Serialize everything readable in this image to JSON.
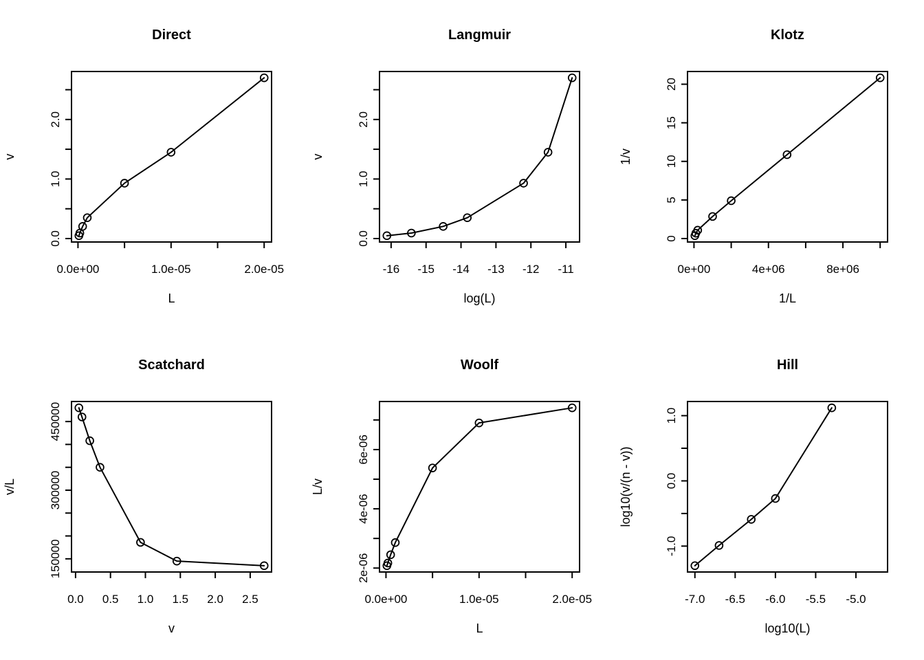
{
  "figure": {
    "background": "#ffffff",
    "foreground": "#000000",
    "rows": 2,
    "cols": 3,
    "marker": "open-circle",
    "description_titles": [
      "Direct",
      "Langmuir",
      "Klotz",
      "Scatchard",
      "Woolf",
      "Hill"
    ]
  },
  "chart_data": [
    {
      "id": "direct",
      "type": "line",
      "title": "Direct",
      "xlabel": "L",
      "ylabel": "v",
      "x": [
        1e-07,
        2e-07,
        5e-07,
        1e-06,
        5e-06,
        1e-05,
        2e-05
      ],
      "y": [
        0.048,
        0.092,
        0.204,
        0.35,
        0.93,
        1.45,
        2.7
      ],
      "xlim": [
        -6.96e-07,
        2.0796e-05
      ],
      "ylim": [
        -0.058,
        2.806
      ],
      "xticks": {
        "values": [
          0,
          5e-06,
          1e-05,
          1.5e-05,
          2e-05
        ],
        "labels": [
          "0.0e+00",
          null,
          "1.0e-05",
          null,
          "2.0e-05"
        ]
      },
      "yticks": {
        "values": [
          0,
          0.5,
          1,
          1.5,
          2,
          2.5
        ],
        "labels": [
          "0.0",
          null,
          "1.0",
          null,
          "2.0",
          null
        ]
      },
      "grid": false,
      "color": "#000000"
    },
    {
      "id": "langmuir",
      "type": "line",
      "title": "Langmuir",
      "xlabel": "log(L)",
      "ylabel": "v",
      "x": [
        -16.12,
        -15.42,
        -14.51,
        -13.82,
        -12.21,
        -11.51,
        -10.82
      ],
      "y": [
        0.048,
        0.092,
        0.204,
        0.35,
        0.93,
        1.45,
        2.7
      ],
      "xlim": [
        -16.332,
        -10.608
      ],
      "ylim": [
        -0.058,
        2.806
      ],
      "xticks": {
        "values": [
          -16,
          -15,
          -14,
          -13,
          -12,
          -11
        ],
        "labels": [
          "-16",
          "-15",
          "-14",
          "-13",
          "-12",
          "-11"
        ]
      },
      "yticks": {
        "values": [
          0,
          0.5,
          1,
          1.5,
          2,
          2.5
        ],
        "labels": [
          "0.0",
          null,
          "1.0",
          null,
          "2.0",
          null
        ]
      },
      "grid": false,
      "color": "#000000"
    },
    {
      "id": "klotz",
      "type": "line",
      "title": "Klotz",
      "xlabel": "1/L",
      "ylabel": "1/v",
      "x": [
        10000000,
        5000000,
        2000000,
        1000000,
        200000,
        100000,
        50000
      ],
      "y": [
        20.83,
        10.87,
        4.9,
        2.86,
        1.08,
        0.69,
        0.37
      ],
      "xlim": [
        -348000,
        10398000
      ],
      "ylim": [
        -0.448,
        21.648
      ],
      "xticks": {
        "values": [
          0,
          2000000,
          4000000,
          6000000,
          8000000,
          10000000
        ],
        "labels": [
          "0e+00",
          null,
          "4e+06",
          null,
          "8e+06",
          null
        ]
      },
      "yticks": {
        "values": [
          0,
          5,
          10,
          15,
          20
        ],
        "labels": [
          "0",
          "5",
          "10",
          "15",
          "20"
        ]
      },
      "grid": false,
      "color": "#000000"
    },
    {
      "id": "scatchard",
      "type": "line",
      "title": "Scatchard",
      "xlabel": "v",
      "ylabel": "v/L",
      "x": [
        0.048,
        0.092,
        0.204,
        0.35,
        0.93,
        1.45,
        2.7
      ],
      "y": [
        480000,
        460000,
        408000,
        350000,
        186000,
        145000,
        135000
      ],
      "xlim": [
        -0.058,
        2.806
      ],
      "ylim": [
        121200,
        493800
      ],
      "xticks": {
        "values": [
          0,
          0.5,
          1,
          1.5,
          2,
          2.5
        ],
        "labels": [
          "0.0",
          "0.5",
          "1.0",
          "1.5",
          "2.0",
          "2.5"
        ]
      },
      "yticks": {
        "values": [
          150000,
          200000,
          250000,
          300000,
          350000,
          400000,
          450000
        ],
        "labels": [
          "150000",
          null,
          null,
          "300000",
          null,
          null,
          "450000"
        ]
      },
      "grid": false,
      "color": "#000000"
    },
    {
      "id": "woolf",
      "type": "line",
      "title": "Woolf",
      "xlabel": "L",
      "ylabel": "L/v",
      "x": [
        1e-07,
        2e-07,
        5e-07,
        1e-06,
        5e-06,
        1e-05,
        2e-05
      ],
      "y": [
        2.08e-06,
        2.17e-06,
        2.45e-06,
        2.86e-06,
        5.38e-06,
        6.9e-06,
        7.41e-06
      ],
      "xlim": [
        -6.96e-07,
        2.0796e-05
      ],
      "ylim": [
        1.867e-06,
        7.623e-06
      ],
      "xticks": {
        "values": [
          0,
          5e-06,
          1e-05,
          1.5e-05,
          2e-05
        ],
        "labels": [
          "0.0e+00",
          null,
          "1.0e-05",
          null,
          "2.0e-05"
        ]
      },
      "yticks": {
        "values": [
          2e-06,
          3e-06,
          4e-06,
          5e-06,
          6e-06,
          7e-06
        ],
        "labels": [
          "2e-06",
          null,
          "4e-06",
          null,
          "6e-06",
          null
        ]
      },
      "grid": false,
      "color": "#000000"
    },
    {
      "id": "hill",
      "type": "line",
      "title": "Hill",
      "xlabel": "log10(L)",
      "ylabel": "log10(v/(n - v))",
      "x": [
        -7,
        -6.7,
        -6.3,
        -6,
        -5.3
      ],
      "y": [
        -1.3,
        -0.99,
        -0.59,
        -0.27,
        1.12
      ],
      "xlim": [
        -7.092,
        -4.607
      ],
      "ylim": [
        -1.397,
        1.217
      ],
      "xticks": {
        "values": [
          -7,
          -6.5,
          -6,
          -5.5,
          -5
        ],
        "labels": [
          "-7.0",
          "-6.5",
          "-6.0",
          "-5.5",
          "-5.0"
        ]
      },
      "yticks": {
        "values": [
          -1,
          -0.5,
          0,
          0.5,
          1
        ],
        "labels": [
          "-1.0",
          null,
          "0.0",
          null,
          "1.0"
        ]
      },
      "grid": false,
      "color": "#000000"
    }
  ]
}
